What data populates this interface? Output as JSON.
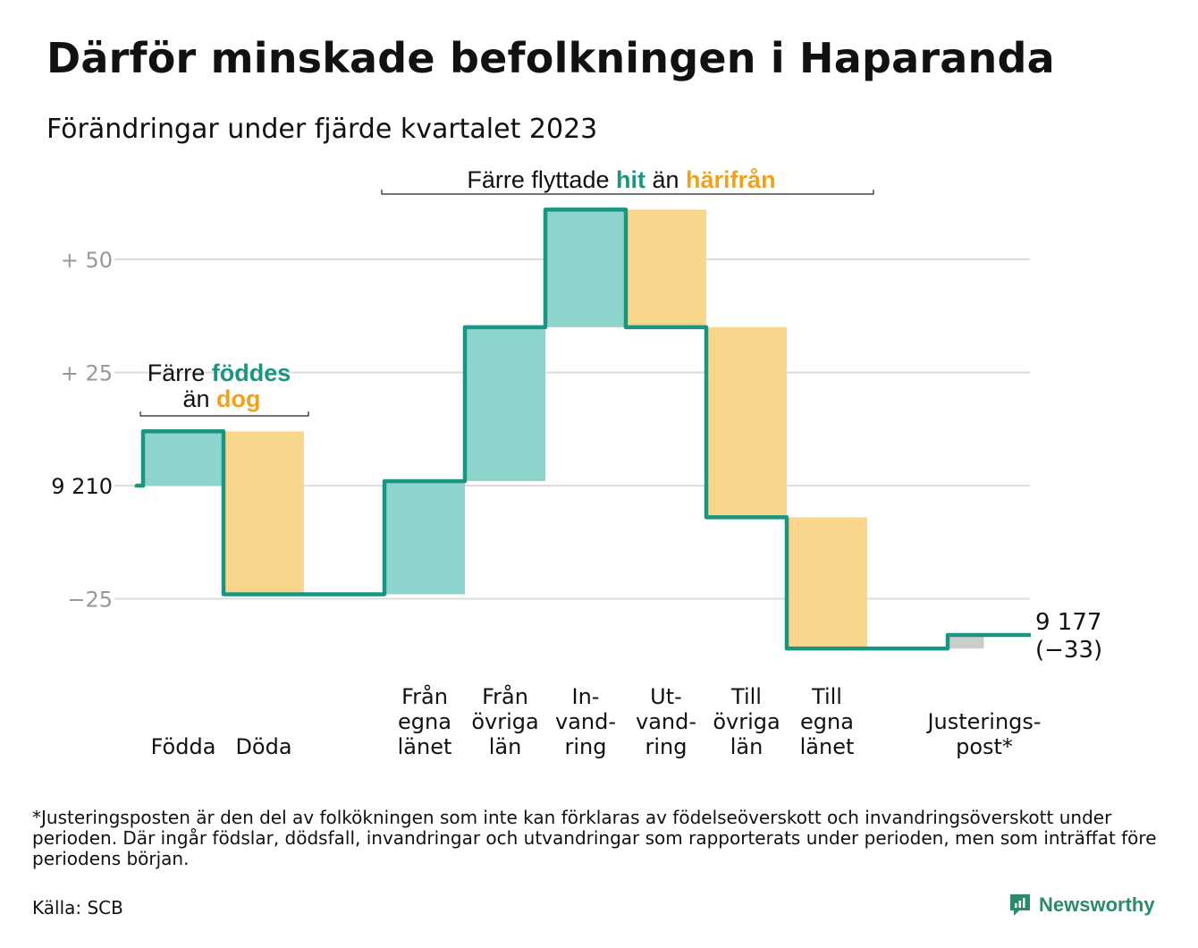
{
  "title": "Därför minskade befolkningen i Haparanda",
  "subtitle": "Förändringar under fjärde kvartalet 2023",
  "footnote": "*Justeringsposten är den del av folkökningen som inte kan förklaras av födelseöverskott och invandringsöverskott under perioden. Där ingår födslar, dödsfall, invandringar och utvandringar som rapporterats under perioden, men som inträffat före periodens början.",
  "source": "Källa: SCB",
  "brand": "Newsworthy",
  "colors": {
    "line": "#1a9582",
    "positive": "#8dd5cc",
    "negative": "#fad68d",
    "adjustment": "#cccccc",
    "grid": "#dddddd",
    "teal_text": "#1a9582",
    "orange_text": "#f0a21f",
    "tick_text": "#999999"
  },
  "chart_data": {
    "type": "waterfall",
    "start_value": 9210,
    "start_label": "9 210",
    "end_value": 9177,
    "end_label": "9 177",
    "end_change_label": "(−33)",
    "yticks": [
      {
        "value": 50,
        "label": "+  50"
      },
      {
        "value": 25,
        "label": "+  25"
      },
      {
        "value": 0,
        "label": "9  210"
      },
      {
        "value": -25,
        "label": "−25"
      }
    ],
    "ylim": [
      -37,
      62
    ],
    "grid": true,
    "steps": [
      {
        "key": "fodda",
        "label": [
          "Födda"
        ],
        "change": 12,
        "kind": "positive"
      },
      {
        "key": "doda",
        "label": [
          "Döda"
        ],
        "change": -36,
        "kind": "negative"
      },
      {
        "key": "gap",
        "label": [],
        "change": 0,
        "kind": "gap"
      },
      {
        "key": "fran_egna",
        "label": [
          "Från",
          "egna",
          "länet"
        ],
        "change": 25,
        "kind": "positive"
      },
      {
        "key": "fran_ovriga",
        "label": [
          "Från",
          "övriga",
          "län"
        ],
        "change": 34,
        "kind": "positive"
      },
      {
        "key": "invandring",
        "label": [
          "In-",
          "vand-",
          "ring"
        ],
        "change": 26,
        "kind": "positive"
      },
      {
        "key": "utvandring",
        "label": [
          "Ut-",
          "vand-",
          "ring"
        ],
        "change": -26,
        "kind": "negative"
      },
      {
        "key": "till_ovriga",
        "label": [
          "Till",
          "övriga",
          "län"
        ],
        "change": -42,
        "kind": "negative"
      },
      {
        "key": "till_egna",
        "label": [
          "Till",
          "egna",
          "länet"
        ],
        "change": -29,
        "kind": "negative"
      },
      {
        "key": "gap2",
        "label": [],
        "change": 0,
        "kind": "gap"
      },
      {
        "key": "justering",
        "label": [
          "Justerings-",
          "post*"
        ],
        "change": 3,
        "kind": "adjustment"
      }
    ],
    "annotations": [
      {
        "key": "births",
        "line1_prefix": "Färre",
        "line1_highlight": "föddes",
        "line2_prefix": "än",
        "line2_highlight": "dog"
      },
      {
        "key": "moves",
        "prefix": "Färre flyttade",
        "highlight1": "hit",
        "middle": "än",
        "highlight2": "härifrån"
      }
    ]
  }
}
